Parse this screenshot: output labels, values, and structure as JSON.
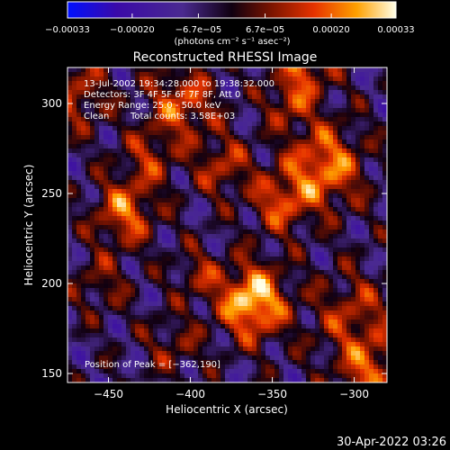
{
  "chart_data": {
    "type": "heatmap",
    "title": "Reconstructed RHESSI Image",
    "xlabel": "Heliocentric X (arcsec)",
    "ylabel": "Heliocentric Y (arcsec)",
    "xlim": [
      -475,
      -280
    ],
    "ylim": [
      145,
      320
    ],
    "x_ticks": [
      -450,
      -400,
      -350,
      -300
    ],
    "x_tick_labels": [
      "−450",
      "−400",
      "−350",
      "−300"
    ],
    "y_ticks": [
      150,
      200,
      250,
      300
    ],
    "y_tick_labels": [
      "150",
      "200",
      "250",
      "300"
    ],
    "colorbar": {
      "range": [
        -0.00033,
        0.00033
      ],
      "ticks": [
        -0.00033,
        -0.0002,
        -6.7e-05,
        6.7e-05,
        0.0002,
        0.00033
      ],
      "tick_labels": [
        "−0.00033",
        "−0.00020",
        "−6.7e−05",
        "6.7e−05",
        "0.00020",
        "0.00033"
      ],
      "unit_label": "(photons cm⁻² s⁻¹ asec⁻²)"
    },
    "annotations": {
      "time_range": "13-Jul-2002 19:34:28.000 to 19:38:32.000",
      "detectors": "Detectors: 3F 4F 5F 6F 7F 8F, Att 0",
      "energy": "Energy Range: 25.0 - 50.0 keV",
      "clean_label": "Clean",
      "total_counts": "Total counts: 3.58E+03",
      "peak": "Position of Peak = [−362,190]"
    },
    "peak_position": [
      -362,
      190
    ],
    "footer_date": "30-Apr-2022 03:26"
  }
}
